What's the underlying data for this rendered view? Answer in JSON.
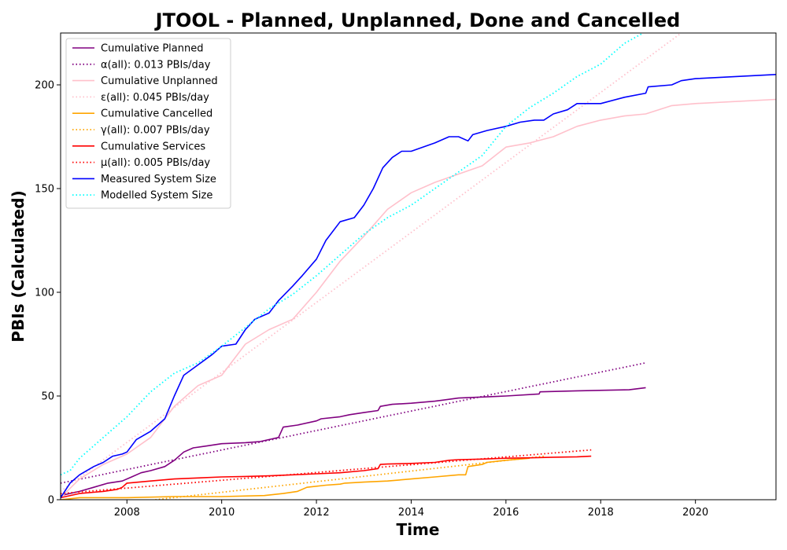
{
  "chart_data": {
    "type": "line",
    "title": "JTOOL - Planned, Unplanned, Done  and Cancelled",
    "xlabel": "Time",
    "ylabel": "PBIs (Calculated)",
    "xlim": [
      2006.6,
      2021.7
    ],
    "ylim": [
      0,
      225
    ],
    "x_ticks": [
      {
        "value": 2008,
        "label": "2008"
      },
      {
        "value": 2010,
        "label": "2010"
      },
      {
        "value": 2012,
        "label": "2012"
      },
      {
        "value": 2014,
        "label": "2014"
      },
      {
        "value": 2016,
        "label": "2016"
      },
      {
        "value": 2018,
        "label": "2018"
      },
      {
        "value": 2020,
        "label": "2020"
      }
    ],
    "y_ticks": [
      {
        "value": 0,
        "label": "0"
      },
      {
        "value": 50,
        "label": "50"
      },
      {
        "value": 100,
        "label": "100"
      },
      {
        "value": 150,
        "label": "150"
      },
      {
        "value": 200,
        "label": "200"
      }
    ],
    "grid": false,
    "legend_position": "upper-left",
    "series": [
      {
        "name": "Cumulative Planned",
        "color": "#800080",
        "style": "solid",
        "x": [
          2006.6,
          2007.0,
          2007.3,
          2007.6,
          2007.9,
          2008.1,
          2008.3,
          2008.5,
          2008.8,
          2009.0,
          2009.2,
          2009.4,
          2009.7,
          2010.0,
          2010.5,
          2010.8,
          2011.2,
          2011.3,
          2011.6,
          2012.0,
          2012.1,
          2012.5,
          2012.7,
          2013.0,
          2013.3,
          2013.35,
          2013.6,
          2014.0,
          2014.5,
          2015.0,
          2015.5,
          2016.0,
          2016.7,
          2016.72,
          2017.5,
          2018.6,
          2018.95
        ],
        "y": [
          2,
          4,
          6,
          8,
          9,
          11,
          13,
          14,
          16,
          19,
          23,
          25,
          26,
          27,
          27.5,
          28,
          30,
          35,
          36,
          38,
          39,
          40,
          41,
          42,
          43,
          45,
          46,
          46.5,
          47.5,
          49,
          49.5,
          50,
          51,
          52,
          52.5,
          53,
          54
        ]
      },
      {
        "name": "α(all): 0.013 PBIs/day",
        "color": "#800080",
        "style": "dotted",
        "x": [
          2006.6,
          2018.95
        ],
        "y": [
          8,
          66
        ]
      },
      {
        "name": "Cumulative Unplanned",
        "color": "#ffc0cb",
        "style": "solid",
        "x": [
          2006.6,
          2007.0,
          2007.5,
          2008.0,
          2008.5,
          2009.0,
          2009.5,
          2010.0,
          2010.5,
          2011.0,
          2011.5,
          2012.0,
          2012.5,
          2013.0,
          2013.5,
          2014.0,
          2014.5,
          2015.0,
          2015.5,
          2016.0,
          2016.5,
          2017.0,
          2017.5,
          2018.0,
          2018.5,
          2018.95,
          2019.5,
          2020.0,
          2021.7
        ],
        "y": [
          1,
          10,
          17,
          22,
          30,
          45,
          55,
          60,
          75,
          82,
          87,
          100,
          115,
          127,
          140,
          148,
          153,
          157,
          161,
          170,
          172,
          175,
          180,
          183,
          185,
          186,
          190,
          191,
          193
        ]
      },
      {
        "name": "ε(all): 0.045 PBIs/day",
        "color": "#ffc0cb",
        "style": "dotted",
        "x": [
          2006.6,
          2019.7
        ],
        "y": [
          4,
          225
        ]
      },
      {
        "name": "Cumulative Cancelled",
        "color": "#ffa500",
        "style": "solid",
        "x": [
          2006.6,
          2007.0,
          2008.0,
          2009.0,
          2010.0,
          2010.9,
          2011.3,
          2011.6,
          2011.8,
          2012.2,
          2012.5,
          2012.6,
          2013.0,
          2013.5,
          2014.0,
          2014.5,
          2015.0,
          2015.15,
          2015.2,
          2015.5,
          2015.6,
          2016.0,
          2016.5
        ],
        "y": [
          0,
          1,
          1,
          1.5,
          1.5,
          2,
          3,
          4,
          6,
          7,
          7.5,
          8,
          8.5,
          9,
          10,
          11,
          12,
          12,
          16,
          17,
          18,
          19,
          20
        ]
      },
      {
        "name": "γ(all): 0.007 PBIs/day",
        "color": "#ffa500",
        "style": "dotted",
        "x": [
          2008.6,
          2016.8
        ],
        "y": [
          0,
          21
        ]
      },
      {
        "name": "Cumulative Services",
        "color": "#ff0000",
        "style": "solid",
        "x": [
          2006.6,
          2007.0,
          2007.5,
          2007.8,
          2007.9,
          2008.0,
          2008.5,
          2009.0,
          2009.5,
          2010.0,
          2010.5,
          2011.0,
          2011.5,
          2012.0,
          2012.5,
          2013.0,
          2013.3,
          2013.35,
          2013.5,
          2014.0,
          2014.5,
          2014.8,
          2015.0,
          2015.5,
          2016.0,
          2016.5,
          2017.0,
          2017.5,
          2017.8
        ],
        "y": [
          1,
          3,
          4,
          5,
          6,
          8,
          9,
          10,
          10.5,
          11,
          11.2,
          11.5,
          12,
          12.5,
          13,
          14,
          15,
          17,
          17.2,
          17.5,
          18,
          19,
          19.3,
          19.6,
          20,
          20.2,
          20.5,
          20.7,
          21
        ]
      },
      {
        "name": "μ(all): 0.005 PBIs/day",
        "color": "#ff0000",
        "style": "dotted",
        "x": [
          2006.6,
          2017.8
        ],
        "y": [
          3,
          24
        ]
      },
      {
        "name": "Measured System Size",
        "color": "#0000ff",
        "style": "solid",
        "x": [
          2006.6,
          2006.8,
          2007.0,
          2007.3,
          2007.5,
          2007.7,
          2007.9,
          2008.0,
          2008.2,
          2008.5,
          2008.8,
          2009.0,
          2009.2,
          2009.5,
          2009.8,
          2010.0,
          2010.3,
          2010.5,
          2010.7,
          2011.0,
          2011.2,
          2011.5,
          2011.7,
          2012.0,
          2012.2,
          2012.5,
          2012.8,
          2013.0,
          2013.2,
          2013.4,
          2013.6,
          2013.8,
          2014.0,
          2014.5,
          2014.8,
          2015.0,
          2015.2,
          2015.3,
          2015.6,
          2016.0,
          2016.3,
          2016.6,
          2016.8,
          2017.0,
          2017.3,
          2017.5,
          2017.8,
          2018.0,
          2018.5,
          2018.95,
          2019.0,
          2019.5,
          2019.7,
          2020.0,
          2021.7
        ],
        "y": [
          1,
          8,
          12,
          16,
          18,
          21,
          22,
          23,
          29,
          33,
          39,
          50,
          60,
          65,
          70,
          74,
          75,
          82,
          87,
          90,
          96,
          103,
          108,
          116,
          125,
          134,
          136,
          142,
          150,
          160,
          165,
          168,
          168,
          172,
          175,
          175,
          173,
          176,
          178,
          180,
          182,
          183,
          183,
          186,
          188,
          191,
          191,
          191,
          194,
          196,
          199,
          200,
          202,
          203,
          205
        ]
      },
      {
        "name": "Modelled System Size",
        "color": "#00ffff",
        "style": "dotted",
        "x": [
          2006.6,
          2006.8,
          2007.0,
          2007.5,
          2008.0,
          2008.5,
          2009.0,
          2009.5,
          2010.0,
          2010.5,
          2011.0,
          2011.5,
          2012.0,
          2012.5,
          2013.0,
          2013.5,
          2014.0,
          2014.5,
          2015.0,
          2015.5,
          2016.0,
          2016.5,
          2017.0,
          2017.5,
          2018.0,
          2018.5,
          2018.9
        ],
        "y": [
          12,
          14,
          20,
          30,
          40,
          52,
          61,
          66,
          74,
          83,
          92,
          99,
          108,
          118,
          128,
          136,
          142,
          150,
          158,
          166,
          180,
          189,
          196,
          204,
          210,
          220,
          225
        ]
      }
    ]
  }
}
